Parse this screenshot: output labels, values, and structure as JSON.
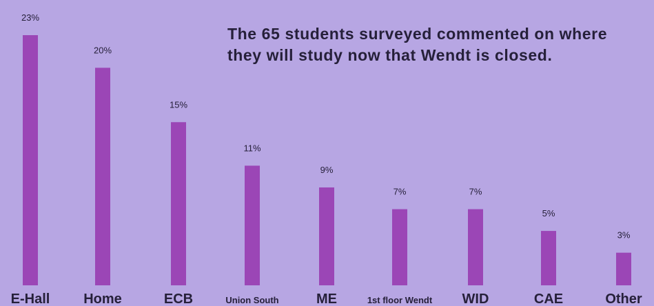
{
  "headline": "The 65 students surveyed commented on where they will study now that Wendt is closed.",
  "colors": {
    "background": "#b7a6e3",
    "bar": "#9b46b6",
    "text": "#26203a"
  },
  "chart_data": {
    "type": "bar",
    "title": "",
    "xlabel": "",
    "ylabel": "",
    "ylim": [
      0,
      23
    ],
    "grid": false,
    "legend": "none",
    "categories": [
      "E-Hall",
      "Home",
      "ECB",
      "Union South",
      "ME",
      "1st floor Wendt",
      "WID",
      "CAE",
      "Other"
    ],
    "values": [
      23,
      20,
      15,
      11,
      9,
      7,
      7,
      5,
      3
    ],
    "value_labels": [
      "23%",
      "20%",
      "15%",
      "11%",
      "9%",
      "7%",
      "7%",
      "5%",
      "3%"
    ]
  }
}
